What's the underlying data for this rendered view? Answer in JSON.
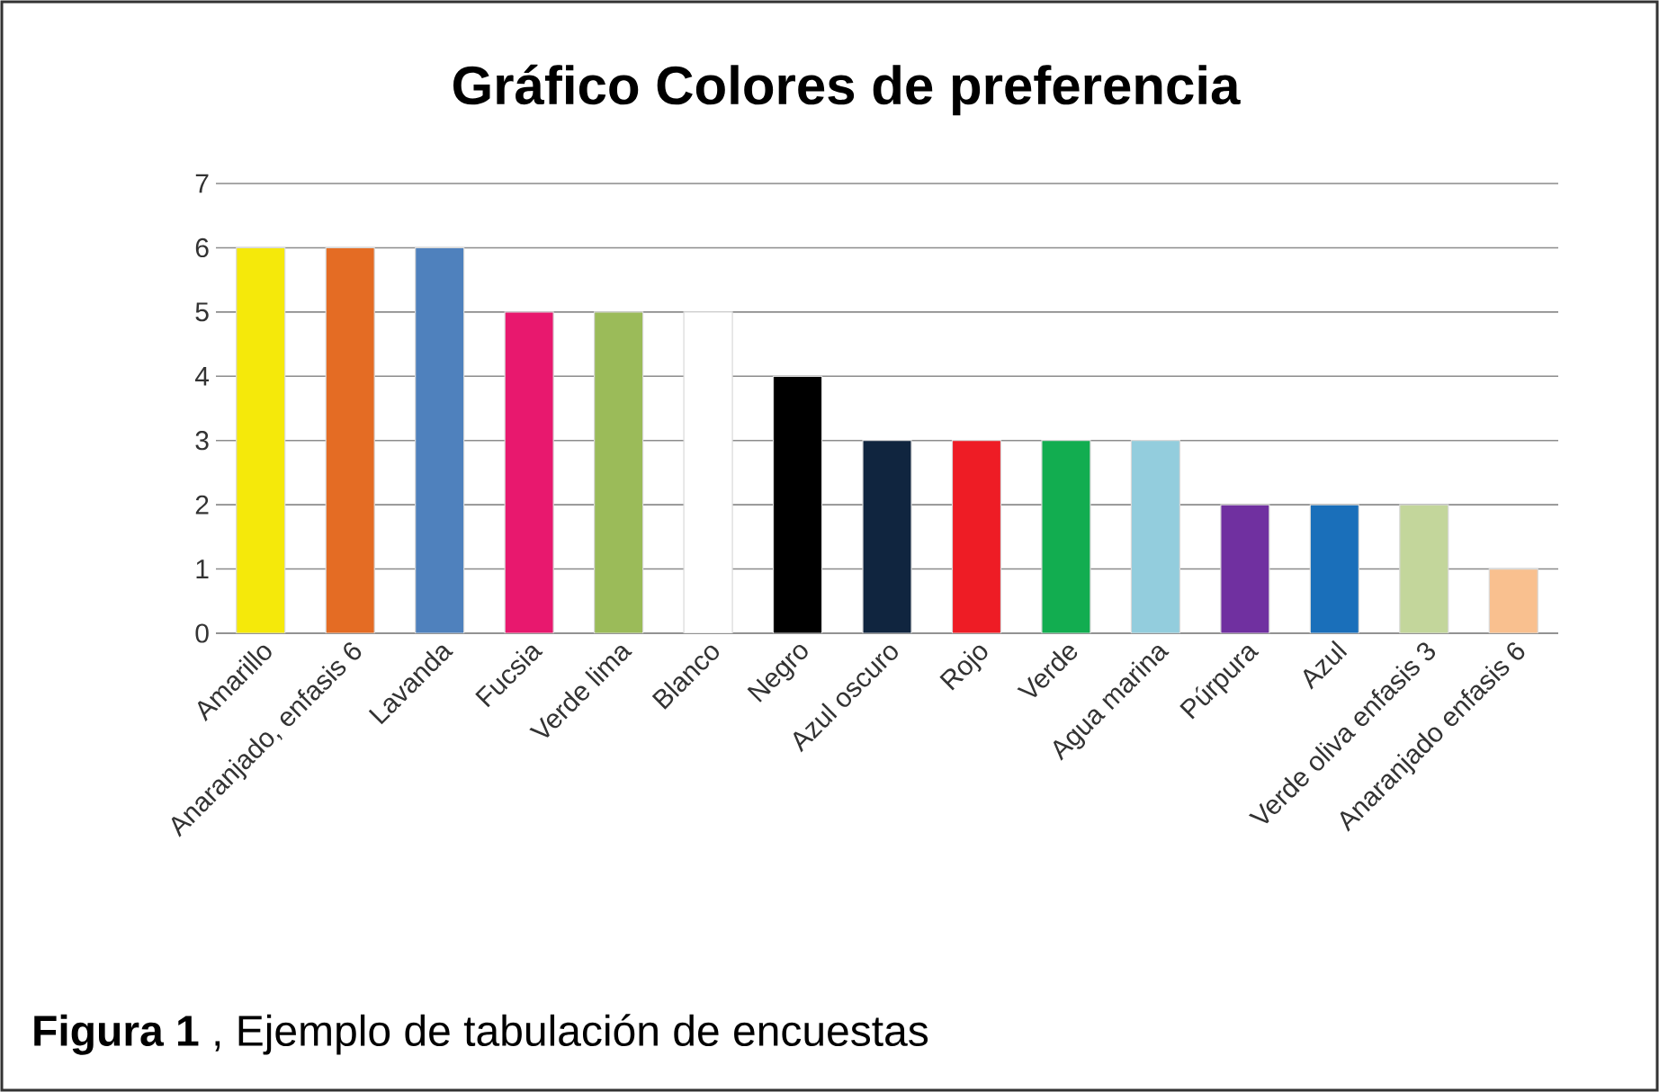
{
  "chart_data": {
    "type": "bar",
    "title": "Gráfico Colores de preferencia",
    "categories": [
      "Amarillo",
      "Anaranjado, enfasis 6",
      "Lavanda",
      "Fucsia",
      "Verde lima",
      "Blanco",
      "Negro",
      "Azul oscuro",
      "Rojo",
      "Verde",
      "Agua marina",
      "Púrpura",
      "Azul",
      "Verde oliva enfasis 3",
      "Anaranjado enfasis 6"
    ],
    "values": [
      6,
      6,
      6,
      5,
      5,
      5,
      4,
      3,
      3,
      3,
      3,
      2,
      2,
      2,
      1
    ],
    "colors": [
      "#f5e90a",
      "#e46c24",
      "#4f81bd",
      "#e8186e",
      "#9bbb59",
      "#ffffff",
      "#000000",
      "#10253f",
      "#ee1c25",
      "#12ad50",
      "#93cddd",
      "#7030a0",
      "#1a6fba",
      "#c3d69b",
      "#f9c08f"
    ],
    "ylim": [
      0,
      7
    ],
    "yticks": [
      0,
      1,
      2,
      3,
      4,
      5,
      6,
      7
    ],
    "grid": "y",
    "annotations": [
      "**Figura 1** , Ejemplo de tabulación de encuestas"
    ]
  }
}
